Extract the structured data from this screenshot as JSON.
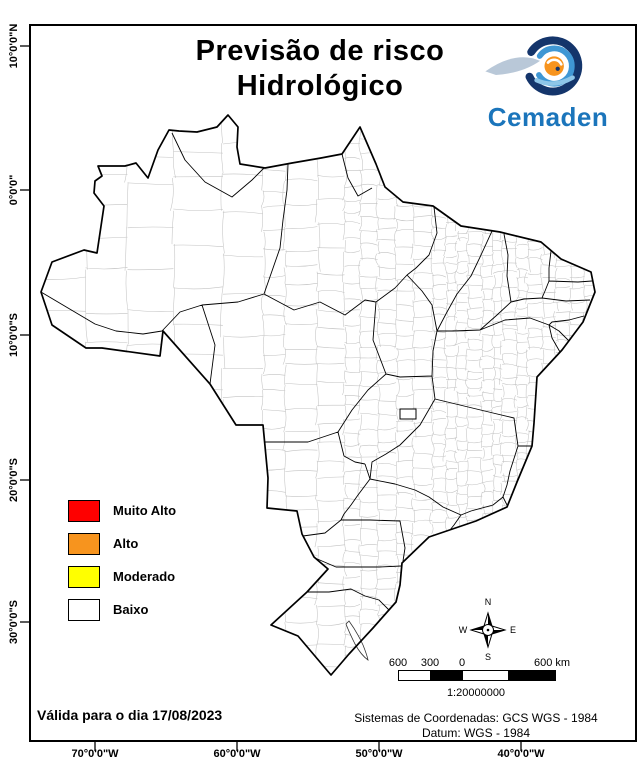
{
  "title": {
    "line1": "Previsão de risco",
    "line2": "Hidrológico"
  },
  "logo": {
    "name": "Cemaden",
    "brand_color": "#1b75bb"
  },
  "legend": {
    "items": [
      {
        "label": "Muito Alto",
        "color": "#fe0000"
      },
      {
        "label": "Alto",
        "color": "#f7941e"
      },
      {
        "label": "Moderado",
        "color": "#ffff00"
      },
      {
        "label": "Baixo",
        "color": "#ffffff"
      }
    ]
  },
  "validity": "Válida para o dia 17/08/2023",
  "axes": {
    "left": [
      "10°0'0\"N",
      "0°0'0\"",
      "10°0'0\"S",
      "20°0'0\"S",
      "30°0'0\"S"
    ],
    "bottom": [
      "70°0'0\"W",
      "60°0'0\"W",
      "50°0'0\"W",
      "40°0'0\"W"
    ]
  },
  "compass": {
    "north": "N",
    "east": "E",
    "south": "S",
    "west": "W"
  },
  "scalebar": {
    "labels": [
      "600",
      "300",
      "0",
      "600 km"
    ],
    "ratio": "1:20000000"
  },
  "footer": {
    "line1": "Sistemas de Coordenadas: GCS WGS - 1984",
    "line2": "Datum: WGS - 1984"
  }
}
